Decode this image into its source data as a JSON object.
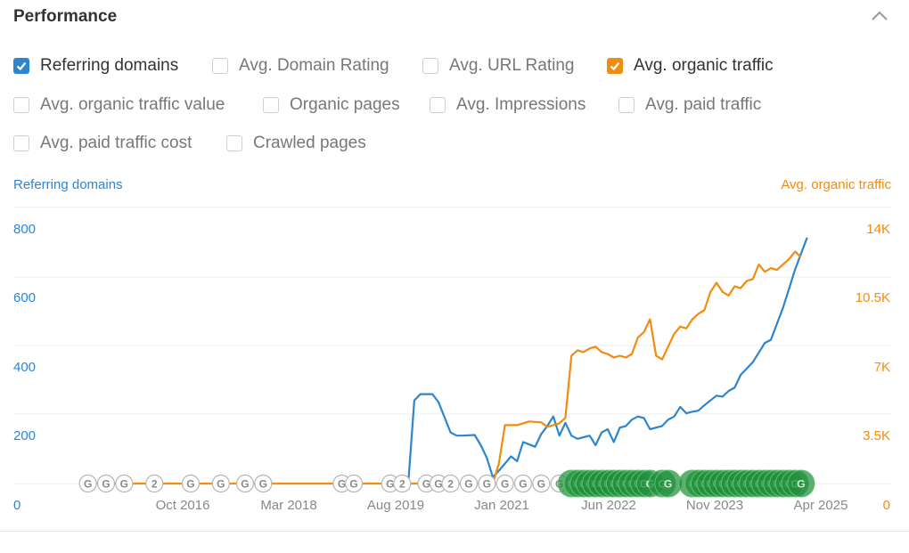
{
  "panel": {
    "title": "Performance"
  },
  "options": [
    {
      "label": "Referring domains",
      "checked": true,
      "color": "#2d85d0"
    },
    {
      "label": "Avg. Domain Rating",
      "checked": false
    },
    {
      "label": "Avg. URL Rating",
      "checked": false
    },
    {
      "label": "Avg. organic traffic",
      "checked": true,
      "color": "#f28c0f"
    },
    {
      "label": "Avg. organic traffic value",
      "checked": false
    },
    {
      "label": "Organic pages",
      "checked": false
    },
    {
      "label": "Avg. Impressions",
      "checked": false
    },
    {
      "label": "Avg. paid traffic",
      "checked": false
    },
    {
      "label": "Avg. paid traffic cost",
      "checked": false
    },
    {
      "label": "Crawled pages",
      "checked": false
    }
  ],
  "chart_data": {
    "type": "line",
    "x_ticks": [
      "Oct 2016",
      "Mar 2018",
      "Aug 2019",
      "Jan 2021",
      "Jun 2022",
      "Nov 2023",
      "Apr 2025"
    ],
    "y_left": {
      "label": "Referring domains",
      "ticks": [
        "0",
        "200",
        "400",
        "600",
        "800"
      ],
      "range": [
        0,
        800
      ],
      "color": "#2d85d0"
    },
    "y_right": {
      "label": "Avg. organic traffic",
      "ticks": [
        "0",
        "3.5K",
        "7K",
        "10.5K",
        "14K"
      ],
      "range": [
        0,
        14000
      ],
      "color": "#f28c0f"
    },
    "grid": true,
    "series": [
      {
        "name": "Referring domains",
        "axis": "left",
        "color": "#2d85d0",
        "points": [
          [
            "2019-10",
            0
          ],
          [
            "2019-11",
            260
          ],
          [
            "2019-12",
            280
          ],
          [
            "2020-02",
            280
          ],
          [
            "2020-03",
            255
          ],
          [
            "2020-05",
            160
          ],
          [
            "2020-06",
            150
          ],
          [
            "2020-07",
            150
          ],
          [
            "2020-09",
            152
          ],
          [
            "2020-10",
            120
          ],
          [
            "2020-11",
            80
          ],
          [
            "2020-12",
            20
          ],
          [
            "2021-01",
            40
          ],
          [
            "2021-03",
            85
          ],
          [
            "2021-04",
            70
          ],
          [
            "2021-05",
            130
          ],
          [
            "2021-07",
            115
          ],
          [
            "2021-08",
            155
          ],
          [
            "2021-09",
            180
          ],
          [
            "2021-10",
            210
          ],
          [
            "2021-11",
            150
          ],
          [
            "2021-12",
            190
          ],
          [
            "2022-01",
            150
          ],
          [
            "2022-02",
            140
          ],
          [
            "2022-03",
            145
          ],
          [
            "2022-04",
            150
          ],
          [
            "2022-05",
            120
          ],
          [
            "2022-06",
            160
          ],
          [
            "2022-07",
            170
          ],
          [
            "2022-08",
            130
          ],
          [
            "2022-09",
            175
          ],
          [
            "2022-10",
            180
          ],
          [
            "2022-11",
            200
          ],
          [
            "2022-12",
            210
          ],
          [
            "2023-01",
            205
          ],
          [
            "2023-02",
            170
          ],
          [
            "2023-03",
            175
          ],
          [
            "2023-04",
            180
          ],
          [
            "2023-05",
            200
          ],
          [
            "2023-06",
            210
          ],
          [
            "2023-07",
            240
          ],
          [
            "2023-08",
            220
          ],
          [
            "2023-09",
            225
          ],
          [
            "2023-10",
            228
          ],
          [
            "2023-11",
            245
          ],
          [
            "2023-12",
            260
          ],
          [
            "2024-01",
            275
          ],
          [
            "2024-02",
            272
          ],
          [
            "2024-03",
            290
          ],
          [
            "2024-04",
            300
          ],
          [
            "2024-05",
            340
          ],
          [
            "2024-06",
            360
          ],
          [
            "2024-07",
            380
          ],
          [
            "2024-08",
            410
          ],
          [
            "2024-09",
            440
          ],
          [
            "2024-10",
            450
          ],
          [
            "2024-11",
            500
          ],
          [
            "2024-12",
            550
          ],
          [
            "2025-01",
            610
          ],
          [
            "2025-02",
            670
          ],
          [
            "2025-03",
            720
          ],
          [
            "2025-04",
            770
          ]
        ]
      },
      {
        "name": "Avg. organic traffic",
        "axis": "right",
        "color": "#f28c0f",
        "points": [
          [
            "2015-06",
            0
          ],
          [
            "2020-12",
            0
          ],
          [
            "2021-01",
            1100
          ],
          [
            "2021-02",
            3200
          ],
          [
            "2021-04",
            3200
          ],
          [
            "2021-05",
            3300
          ],
          [
            "2021-06",
            3400
          ],
          [
            "2021-08",
            3350
          ],
          [
            "2021-09",
            3100
          ],
          [
            "2021-10",
            3200
          ],
          [
            "2021-11",
            3300
          ],
          [
            "2021-12",
            3600
          ],
          [
            "2022-01",
            7000
          ],
          [
            "2022-02",
            7300
          ],
          [
            "2022-03",
            7200
          ],
          [
            "2022-04",
            7400
          ],
          [
            "2022-05",
            7500
          ],
          [
            "2022-06",
            7200
          ],
          [
            "2022-07",
            7100
          ],
          [
            "2022-08",
            6900
          ],
          [
            "2022-09",
            7000
          ],
          [
            "2022-10",
            6900
          ],
          [
            "2022-11",
            7100
          ],
          [
            "2022-12",
            8000
          ],
          [
            "2023-01",
            8300
          ],
          [
            "2023-02",
            9000
          ],
          [
            "2023-03",
            7000
          ],
          [
            "2023-04",
            6800
          ],
          [
            "2023-05",
            7500
          ],
          [
            "2023-06",
            8200
          ],
          [
            "2023-07",
            8600
          ],
          [
            "2023-08",
            8500
          ],
          [
            "2023-09",
            9000
          ],
          [
            "2023-10",
            9300
          ],
          [
            "2023-11",
            9500
          ],
          [
            "2023-12",
            10500
          ],
          [
            "2024-01",
            11000
          ],
          [
            "2024-02",
            10500
          ],
          [
            "2024-03",
            10300
          ],
          [
            "2024-04",
            10800
          ],
          [
            "2024-05",
            10700
          ],
          [
            "2024-06",
            11100
          ],
          [
            "2024-07",
            11200
          ],
          [
            "2024-08",
            12000
          ],
          [
            "2024-09",
            11600
          ],
          [
            "2024-10",
            11800
          ],
          [
            "2024-11",
            11700
          ],
          [
            "2024-12",
            12000
          ],
          [
            "2025-01",
            12300
          ],
          [
            "2025-02",
            12700
          ],
          [
            "2025-03",
            12400
          ]
        ]
      }
    ],
    "markers": {
      "google_updates": [
        {
          "date": "2015-05",
          "label": "G"
        },
        {
          "date": "2015-08",
          "label": "G"
        },
        {
          "date": "2015-11",
          "label": "G"
        },
        {
          "date": "2016-04",
          "label": "2"
        },
        {
          "date": "2016-10",
          "label": "G"
        },
        {
          "date": "2017-03",
          "label": "G"
        },
        {
          "date": "2017-07",
          "label": "G"
        },
        {
          "date": "2017-10",
          "label": "G"
        },
        {
          "date": "2018-11",
          "label": "G"
        },
        {
          "date": "2019-01",
          "label": "G"
        },
        {
          "date": "2019-07",
          "label": "G"
        },
        {
          "date": "2019-09",
          "label": "2"
        },
        {
          "date": "2020-01",
          "label": "G"
        },
        {
          "date": "2020-03",
          "label": "G"
        },
        {
          "date": "2020-05",
          "label": "2"
        },
        {
          "date": "2020-08",
          "label": "G"
        },
        {
          "date": "2020-11",
          "label": "G"
        },
        {
          "date": "2021-02",
          "label": "G"
        },
        {
          "date": "2021-05",
          "label": "G"
        },
        {
          "date": "2021-08",
          "label": "G"
        },
        {
          "date": "2021-11",
          "label": "G"
        }
      ],
      "events_green": [
        "2022-01",
        "2022-02",
        "2022-03",
        "2022-04",
        "2022-05",
        "2022-06",
        "2022-07",
        "2022-08",
        "2022-09",
        "2022-10",
        "2022-11",
        "2022-12",
        "2023-01",
        "2023-02",
        "2023-04",
        "2023-05",
        "2023-09",
        "2023-10",
        "2023-11",
        "2023-12",
        "2024-01",
        "2024-02",
        "2024-03",
        "2024-04",
        "2024-05",
        "2024-06",
        "2024-07",
        "2024-08",
        "2024-09",
        "2024-10",
        "2024-11",
        "2024-12",
        "2025-01",
        "2025-02",
        "2025-03"
      ]
    }
  }
}
